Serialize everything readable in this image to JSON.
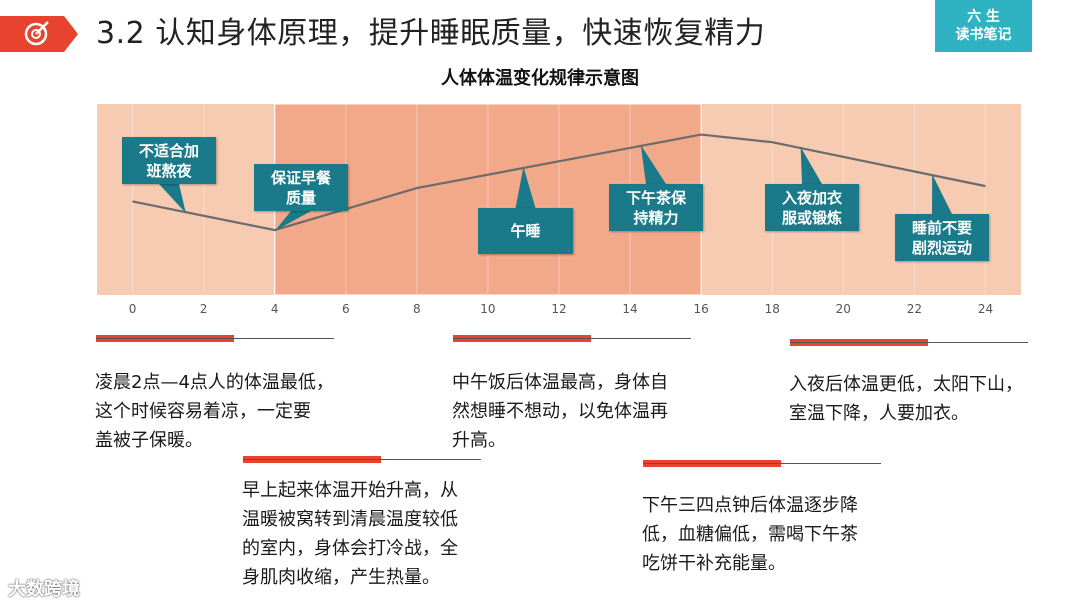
{
  "header": {
    "title": "3.2 认知身体原理，提升睡眠质量，快速恢复精力",
    "brand_line1": "六 生",
    "brand_line2": "读书笔记"
  },
  "chart_data": {
    "type": "line",
    "title": "人体体温变化规律示意图",
    "x_ticks": [
      0,
      2,
      4,
      6,
      8,
      10,
      12,
      14,
      16,
      18,
      20,
      22,
      24
    ],
    "xlim": [
      -1,
      25
    ],
    "ylim": [
      0,
      10
    ],
    "x": [
      0,
      4,
      8,
      16,
      18,
      24
    ],
    "y": [
      4.9,
      3.4,
      5.6,
      8.4,
      8.0,
      5.7
    ],
    "highlight_range": [
      4,
      16
    ],
    "colors": {
      "band": "#f7cbb1",
      "highlight": "#f2a98a",
      "line": "#6b6b6b",
      "callout": "#1a7a8a"
    },
    "annotations": [
      {
        "label": "不适合加\n班熬夜",
        "target_x": 1.5
      },
      {
        "label": "保证早餐\n质量",
        "target_x": 4
      },
      {
        "label": "午睡",
        "target_x": 11
      },
      {
        "label": "下午茶保\n持精力",
        "target_x": 14.3
      },
      {
        "label": "入夜加衣\n服或锻炼",
        "target_x": 18.8
      },
      {
        "label": "睡前不要\n剧烈运动",
        "target_x": 22.5
      }
    ]
  },
  "notes": {
    "n1": "凌晨2点—4点人的体温最低，\n这个时候容易着凉，一定要\n盖被子保暖。",
    "n2": "早上起来体温开始升高，从\n温暖被窝转到清晨温度较低\n的室内，身体会打冷战，全\n身肌肉收缩，产生热量。",
    "n3": "中午饭后体温最高，身体自\n然想睡不想动，以免体温再\n升高。",
    "n4": "下午三四点钟后体温逐步降\n低，血糖偏低，需喝下午茶\n吃饼干补充能量。",
    "n5": "入夜后体温更低，太阳下山，\n室温下降，人要加衣。"
  },
  "watermark": "大数跨境"
}
